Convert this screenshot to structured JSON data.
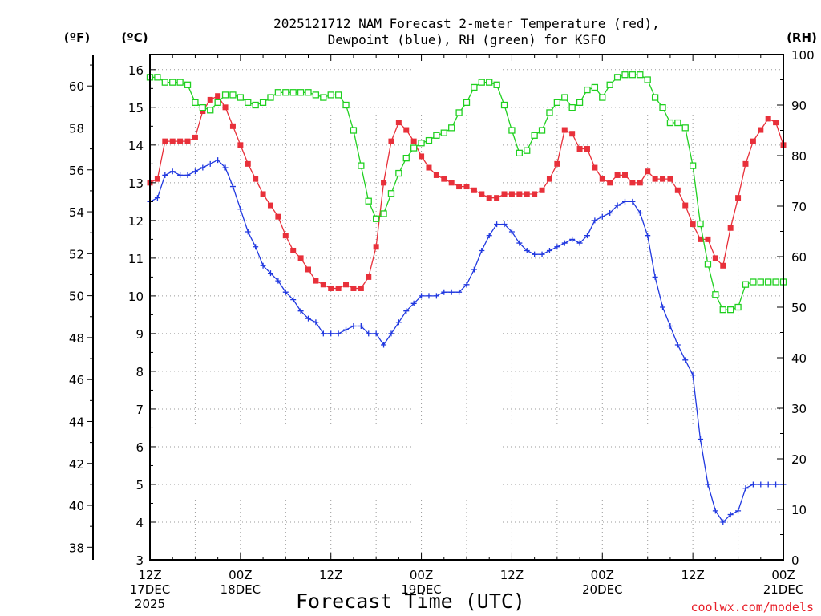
{
  "chart_data": {
    "type": "line",
    "title_line1": "2025121712 NAM Forecast 2-meter Temperature (red),",
    "title_line2": "Dewpoint (blue), RH (green) for KSFO",
    "xlabel": "Forecast Time (UTC)",
    "credit": "coolwx.com/models",
    "units": {
      "f": "(ºF)",
      "c": "(ºC)",
      "rh": "(RH)"
    },
    "x_range_hours": [
      0,
      84
    ],
    "y_c_range": [
      3,
      16.4
    ],
    "y_f_range": [
      37.4,
      61.5
    ],
    "y_rh_range": [
      0,
      100
    ],
    "y_c_ticks": [
      "3",
      "4",
      "5",
      "6",
      "7",
      "8",
      "9",
      "10",
      "11",
      "12",
      "13",
      "14",
      "15",
      "16"
    ],
    "y_f_ticks": [
      "38",
      "40",
      "42",
      "44",
      "46",
      "48",
      "50",
      "52",
      "54",
      "56",
      "58",
      "60"
    ],
    "y_rh_ticks": [
      "0",
      "10",
      "20",
      "30",
      "40",
      "50",
      "60",
      "70",
      "80",
      "90",
      "100"
    ],
    "x_ticks": [
      {
        "hour": 0,
        "line1": "12Z",
        "line2": "17DEC",
        "line3": "2025"
      },
      {
        "hour": 12,
        "line1": "00Z",
        "line2": "18DEC",
        "line3": ""
      },
      {
        "hour": 24,
        "line1": "12Z",
        "line2": "",
        "line3": ""
      },
      {
        "hour": 36,
        "line1": "00Z",
        "line2": "19DEC",
        "line3": ""
      },
      {
        "hour": 48,
        "line1": "12Z",
        "line2": "",
        "line3": ""
      },
      {
        "hour": 60,
        "line1": "00Z",
        "line2": "20DEC",
        "line3": ""
      },
      {
        "hour": 72,
        "line1": "12Z",
        "line2": "",
        "line3": ""
      },
      {
        "hour": 84,
        "line1": "00Z",
        "line2": "21DEC",
        "line3": ""
      }
    ],
    "colors": {
      "temperature": "#e8303a",
      "dewpoint": "#2038e0",
      "rh": "#20d020",
      "grid": "#999999"
    },
    "series": [
      {
        "name": "Temperature",
        "unit": "C",
        "x": [
          0,
          1,
          2,
          3,
          4,
          5,
          6,
          7,
          8,
          9,
          10,
          11,
          12,
          13,
          14,
          15,
          16,
          17,
          18,
          19,
          20,
          21,
          22,
          23,
          24,
          25,
          26,
          27,
          28,
          29,
          30,
          31,
          32,
          33,
          34,
          35,
          36,
          37,
          38,
          39,
          40,
          41,
          42,
          43,
          44,
          45,
          46,
          47,
          48,
          49,
          50,
          51,
          52,
          53,
          54,
          55,
          56,
          57,
          58,
          59,
          60,
          61,
          62,
          63,
          64,
          65,
          66,
          67,
          68,
          69,
          70,
          71,
          72,
          73,
          74,
          75,
          76,
          77,
          78,
          79,
          80,
          81,
          82,
          83,
          84
        ],
        "values": [
          13.0,
          13.1,
          14.1,
          14.1,
          14.1,
          14.1,
          14.2,
          14.9,
          15.2,
          15.3,
          15.0,
          14.5,
          14.0,
          13.5,
          13.1,
          12.7,
          12.4,
          12.1,
          11.6,
          11.2,
          11.0,
          10.7,
          10.4,
          10.3,
          10.2,
          10.2,
          10.3,
          10.2,
          10.2,
          10.5,
          11.3,
          13.0,
          14.1,
          14.6,
          14.4,
          14.1,
          13.7,
          13.4,
          13.2,
          13.1,
          13.0,
          12.9,
          12.9,
          12.8,
          12.7,
          12.6,
          12.6,
          12.7,
          12.7,
          12.7,
          12.7,
          12.7,
          12.8,
          13.1,
          13.5,
          14.4,
          14.3,
          13.9,
          13.9,
          13.4,
          13.1,
          13.0,
          13.2,
          13.2,
          13.0,
          13.0,
          13.3,
          13.1,
          13.1,
          13.1,
          12.8,
          12.4,
          11.9,
          11.5,
          11.5,
          11.0,
          10.8,
          11.8,
          12.6,
          13.5,
          14.1,
          14.4,
          14.7,
          14.6,
          14.0
        ]
      },
      {
        "name": "Dewpoint",
        "unit": "C",
        "x": [
          0,
          1,
          2,
          3,
          4,
          5,
          6,
          7,
          8,
          9,
          10,
          11,
          12,
          13,
          14,
          15,
          16,
          17,
          18,
          19,
          20,
          21,
          22,
          23,
          24,
          25,
          26,
          27,
          28,
          29,
          30,
          31,
          32,
          33,
          34,
          35,
          36,
          37,
          38,
          39,
          40,
          41,
          42,
          43,
          44,
          45,
          46,
          47,
          48,
          49,
          50,
          51,
          52,
          53,
          54,
          55,
          56,
          57,
          58,
          59,
          60,
          61,
          62,
          63,
          64,
          65,
          66,
          67,
          68,
          69,
          70,
          71,
          72,
          73,
          74,
          75,
          76,
          77,
          78,
          79,
          80,
          81,
          82,
          83,
          84
        ],
        "values": [
          12.5,
          12.6,
          13.2,
          13.3,
          13.2,
          13.2,
          13.3,
          13.4,
          13.5,
          13.6,
          13.4,
          12.9,
          12.3,
          11.7,
          11.3,
          10.8,
          10.6,
          10.4,
          10.1,
          9.9,
          9.6,
          9.4,
          9.3,
          9.0,
          9.0,
          9.0,
          9.1,
          9.2,
          9.2,
          9.0,
          9.0,
          8.7,
          9.0,
          9.3,
          9.6,
          9.8,
          10.0,
          10.0,
          10.0,
          10.1,
          10.1,
          10.1,
          10.3,
          10.7,
          11.2,
          11.6,
          11.9,
          11.9,
          11.7,
          11.4,
          11.2,
          11.1,
          11.1,
          11.2,
          11.3,
          11.4,
          11.5,
          11.4,
          11.6,
          12.0,
          12.1,
          12.2,
          12.4,
          12.5,
          12.5,
          12.2,
          11.6,
          10.5,
          9.7,
          9.2,
          8.7,
          8.3,
          7.9,
          6.2,
          5.0,
          4.3,
          4.0,
          4.2,
          4.3,
          4.9,
          5.0,
          5.0,
          5.0,
          5.0,
          5.0
        ]
      },
      {
        "name": "RH",
        "unit": "%",
        "x": [
          0,
          1,
          2,
          3,
          4,
          5,
          6,
          7,
          8,
          9,
          10,
          11,
          12,
          13,
          14,
          15,
          16,
          17,
          18,
          19,
          20,
          21,
          22,
          23,
          24,
          25,
          26,
          27,
          28,
          29,
          30,
          31,
          32,
          33,
          34,
          35,
          36,
          37,
          38,
          39,
          40,
          41,
          42,
          43,
          44,
          45,
          46,
          47,
          48,
          49,
          50,
          51,
          52,
          53,
          54,
          55,
          56,
          57,
          58,
          59,
          60,
          61,
          62,
          63,
          64,
          65,
          66,
          67,
          68,
          69,
          70,
          71,
          72,
          73,
          74,
          75,
          76,
          77,
          78,
          79,
          80,
          81,
          82,
          83,
          84
        ],
        "values": [
          95.5,
          95.5,
          94.5,
          94.5,
          94.5,
          94.0,
          90.5,
          89.5,
          89.0,
          90.5,
          92.0,
          92.0,
          91.5,
          90.5,
          90.0,
          90.5,
          91.5,
          92.5,
          92.5,
          92.5,
          92.5,
          92.5,
          92.0,
          91.5,
          92.0,
          92.0,
          90.0,
          85.0,
          78.0,
          71.0,
          67.5,
          68.5,
          72.5,
          76.5,
          79.5,
          81.5,
          82.5,
          83.0,
          84.0,
          84.5,
          85.5,
          88.5,
          90.5,
          93.5,
          94.5,
          94.5,
          94.0,
          90.0,
          85.0,
          80.5,
          81.0,
          84.0,
          85.0,
          88.5,
          90.5,
          91.5,
          89.5,
          90.5,
          93.0,
          93.5,
          91.5,
          94.0,
          95.5,
          96.0,
          96.0,
          96.0,
          95.0,
          91.5,
          89.5,
          86.5,
          86.5,
          85.5,
          78.0,
          66.5,
          58.5,
          52.5,
          49.5,
          49.5,
          50.0,
          54.5,
          55.0,
          55.0,
          55.0,
          55.0,
          55.0
        ]
      }
    ]
  }
}
